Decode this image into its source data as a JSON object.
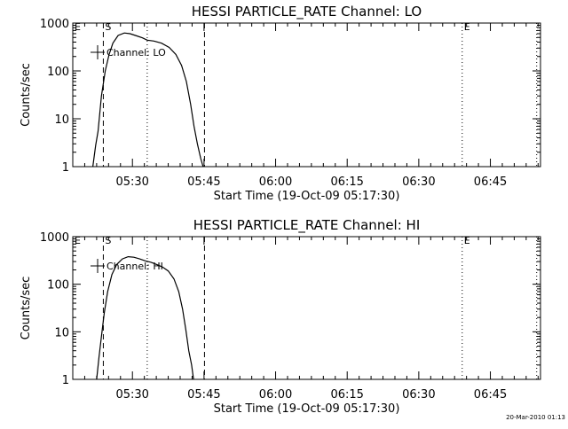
{
  "footer_timestamp": "20-Mar-2010 01:13",
  "chart_data": [
    {
      "type": "line",
      "title": "HESSI PARTICLE_RATE Channel: LO",
      "xlabel": "Start Time (19-Oct-09 05:17:30)",
      "ylabel": "Counts/sec",
      "y_scale": "log",
      "ylim": [
        1,
        1000
      ],
      "x_unit": "minutes after 05:17:30",
      "xlim": [
        0,
        98
      ],
      "x_ticks": [
        {
          "value": 12.5,
          "label": "05:30"
        },
        {
          "value": 27.5,
          "label": "05:45"
        },
        {
          "value": 42.5,
          "label": "06:00"
        },
        {
          "value": 57.5,
          "label": "06:15"
        },
        {
          "value": 72.5,
          "label": "06:30"
        },
        {
          "value": 87.5,
          "label": "06:45"
        }
      ],
      "y_ticks": [
        {
          "value": 1,
          "label": "1"
        },
        {
          "value": 10,
          "label": "10"
        },
        {
          "value": 100,
          "label": "100"
        },
        {
          "value": 1000,
          "label": "1000"
        }
      ],
      "legend": {
        "label": "Channel: LO",
        "position": "top-left"
      },
      "grid": false,
      "series": [
        {
          "name": "Channel: LO",
          "x": [
            4.2,
            4.8,
            5.3,
            6.0,
            6.8,
            7.6,
            8.4,
            9.5,
            10.8,
            12.0,
            13.4,
            14.6,
            15.6,
            17.0,
            18.6,
            20.2,
            21.6,
            22.8,
            23.8,
            24.7,
            25.4,
            26.1,
            26.8,
            27.3
          ],
          "y": [
            1,
            2.8,
            5.5,
            30,
            100,
            220,
            380,
            550,
            620,
            600,
            540,
            490,
            440,
            420,
            380,
            310,
            220,
            130,
            60,
            20,
            7,
            3,
            1.5,
            1
          ]
        }
      ],
      "markers": [
        {
          "kind": "dashed",
          "x": 6.4,
          "label": "S"
        },
        {
          "kind": "dotted",
          "x": 15.6,
          "label": ""
        },
        {
          "kind": "dashed",
          "x": 27.6,
          "label": ""
        },
        {
          "kind": "dotted",
          "x": 81.6,
          "label": "E"
        },
        {
          "kind": "dotted",
          "x": 97.2,
          "label": ""
        }
      ],
      "edge_marker": "E"
    },
    {
      "type": "line",
      "title": "HESSI PARTICLE_RATE Channel: HI",
      "xlabel": "Start Time (19-Oct-09 05:17:30)",
      "ylabel": "Counts/sec",
      "y_scale": "log",
      "ylim": [
        1,
        1000
      ],
      "x_unit": "minutes after 05:17:30",
      "xlim": [
        0,
        98
      ],
      "x_ticks": [
        {
          "value": 12.5,
          "label": "05:30"
        },
        {
          "value": 27.5,
          "label": "05:45"
        },
        {
          "value": 42.5,
          "label": "06:00"
        },
        {
          "value": 57.5,
          "label": "06:15"
        },
        {
          "value": 72.5,
          "label": "06:30"
        },
        {
          "value": 87.5,
          "label": "06:45"
        }
      ],
      "y_ticks": [
        {
          "value": 1,
          "label": "1"
        },
        {
          "value": 10,
          "label": "10"
        },
        {
          "value": 100,
          "label": "100"
        },
        {
          "value": 1000,
          "label": "1000"
        }
      ],
      "legend": {
        "label": "Channel: HI",
        "position": "top-left"
      },
      "grid": false,
      "series": [
        {
          "name": "Channel: HI",
          "x": [
            5.0,
            5.5,
            6.0,
            6.6,
            7.3,
            8.2,
            9.2,
            10.4,
            11.6,
            12.8,
            14.0,
            15.2,
            16.4,
            17.6,
            18.8,
            20.0,
            21.2,
            22.2,
            23.0,
            23.7,
            24.3,
            24.9,
            25.3
          ],
          "y": [
            1,
            3,
            8,
            25,
            70,
            160,
            260,
            340,
            380,
            370,
            340,
            310,
            290,
            260,
            230,
            190,
            130,
            70,
            30,
            11,
            4,
            2,
            1
          ]
        }
      ],
      "markers": [
        {
          "kind": "dashed",
          "x": 6.4,
          "label": "S"
        },
        {
          "kind": "dotted",
          "x": 15.6,
          "label": ""
        },
        {
          "kind": "dashed",
          "x": 27.6,
          "label": ""
        },
        {
          "kind": "dotted",
          "x": 81.6,
          "label": "E"
        },
        {
          "kind": "dotted",
          "x": 97.2,
          "label": ""
        }
      ],
      "edge_marker": "E"
    }
  ]
}
